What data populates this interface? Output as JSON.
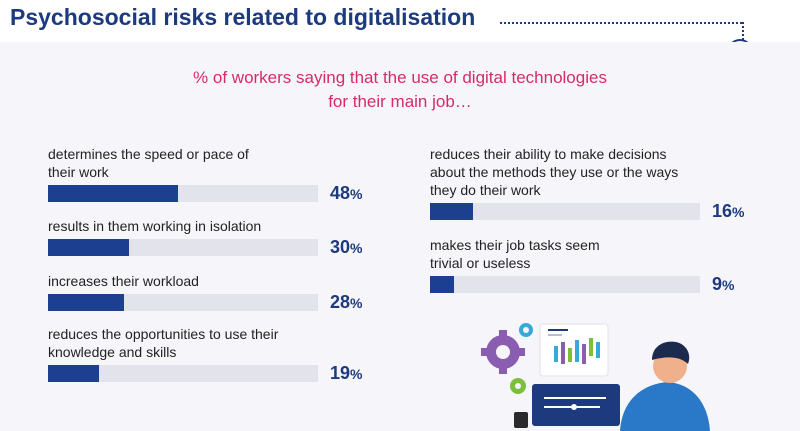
{
  "header": {
    "title": "Psychosocial risks related to digitalisation",
    "subtitle_line1": "% of workers saying that the use of digital technologies",
    "subtitle_line2": "for their main job…"
  },
  "chart_data": {
    "type": "bar",
    "orientation": "horizontal",
    "unit": "%",
    "xlim": [
      0,
      100
    ],
    "categories": [
      "determines the speed or pace of their work",
      "results in them working in isolation",
      "increases their workload",
      "reduces the opportunities to use their knowledge and skills",
      "reduces their ability to make decisions about the methods they use or the ways they do their work",
      "makes their job tasks seem trivial or useless"
    ],
    "values": [
      48,
      30,
      28,
      19,
      16,
      9
    ],
    "bar_color": "#1d3f8f",
    "track_color": "#e3e3eb",
    "label_lines": [
      [
        "determines the speed or pace of",
        "their work"
      ],
      [
        "results in them working in isolation"
      ],
      [
        "increases their workload"
      ],
      [
        "reduces the opportunities to use their",
        "knowledge and skills"
      ],
      [
        "reduces their ability to make decisions",
        "about the methods they use or the ways",
        "they do their work"
      ],
      [
        "makes their job tasks seem",
        "trivial or useless"
      ]
    ]
  },
  "colors": {
    "title": "#1c3a7d",
    "subtitle": "#d72a6a"
  },
  "illustration": {
    "icon": "person-at-laptop-with-gears-and-chart-icon"
  }
}
